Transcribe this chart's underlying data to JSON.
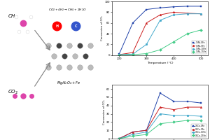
{
  "top_chart": {
    "xlabel": "Temperature (°C)",
    "ylabel": "Conversion of CO₂",
    "series": [
      {
        "label": "15Ni-0Fe",
        "color": "#2244aa",
        "marker": "s",
        "x": [
          200,
          250,
          300,
          350,
          400,
          450,
          500
        ],
        "y": [
          2,
          60,
          85,
          88,
          90,
          91,
          91
        ]
      },
      {
        "label": "15Ni-5Fe",
        "color": "#cc2222",
        "marker": "^",
        "x": [
          200,
          250,
          300,
          350,
          400,
          450,
          500
        ],
        "y": [
          1,
          5,
          60,
          75,
          80,
          78,
          77
        ]
      },
      {
        "label": "15Ni-10Fe",
        "color": "#44aacc",
        "marker": "o",
        "x": [
          200,
          250,
          300,
          350,
          400,
          450,
          500
        ],
        "y": [
          1,
          2,
          20,
          65,
          75,
          77,
          77
        ]
      },
      {
        "label": "15Ni-15Fe",
        "color": "#44cc88",
        "marker": "D",
        "x": [
          200,
          250,
          300,
          350,
          400,
          450,
          500
        ],
        "y": [
          0,
          1,
          3,
          10,
          25,
          40,
          47
        ]
      }
    ],
    "ylim": [
      0,
      100
    ],
    "xlim": [
      175,
      525
    ]
  },
  "bottom_chart": {
    "xlabel": "Temperature (°C)",
    "ylabel": "Conversion of CO₂",
    "series": [
      {
        "label": "15Co-0Fe",
        "color": "#2244aa",
        "marker": "s",
        "x": [
          200,
          250,
          300,
          350,
          400,
          450,
          500
        ],
        "y": [
          0,
          8,
          10,
          55,
          45,
          45,
          43
        ]
      },
      {
        "label": "15Co-5Fe",
        "color": "#cc2222",
        "marker": "^",
        "x": [
          200,
          250,
          300,
          350,
          400,
          450,
          500
        ],
        "y": [
          0,
          8,
          10,
          38,
          35,
          38,
          38
        ]
      },
      {
        "label": "15Co-10Fe",
        "color": "#44aacc",
        "marker": "o",
        "x": [
          200,
          250,
          300,
          350,
          400,
          450,
          500
        ],
        "y": [
          0,
          5,
          8,
          30,
          28,
          28,
          27
        ]
      },
      {
        "label": "15Co-15Fe",
        "color": "#44cc88",
        "marker": "D",
        "x": [
          200,
          250,
          300,
          350,
          400,
          450,
          500
        ],
        "y": [
          0,
          3,
          5,
          18,
          20,
          22,
          22
        ]
      }
    ],
    "ylim": [
      0,
      65
    ],
    "xlim": [
      175,
      525
    ]
  },
  "left_panel": {
    "equation": "CO₂ + 4H₂ → CH₄ + 2H₂O",
    "catalyst": "MgAl₂O₄ + Fe",
    "ch4_label": "$CH_4$",
    "co2_label": "$CO_2$",
    "catalyst_label": "$MgAl_2O_4 + Fe$",
    "equation_label": "$CO_2 + 4H_2 \\rightarrow CH_4 + 2H_2O$"
  }
}
